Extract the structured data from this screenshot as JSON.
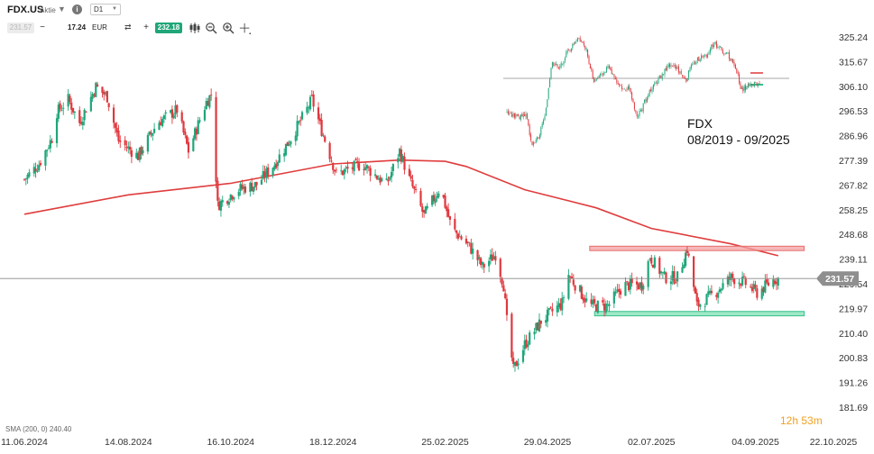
{
  "toolbar": {
    "symbol": "FDX.US",
    "symbol_type": "Aktie",
    "timeframe": "D1",
    "sell_price": "231.57",
    "quantity": "17.24",
    "quantity_unit": "EUR",
    "buy_price": "232.18",
    "icons": [
      "info-icon",
      "chevron-down-icon",
      "swap-icon",
      "candle-type-icon",
      "zoom-out-icon",
      "zoom-in-icon",
      "crosshair-icon"
    ]
  },
  "inset": {
    "title_line1": "FDX",
    "title_line2": "08/2019 - 09/2025"
  },
  "sma_legend": "SMA (200, 0) 240.40",
  "timer": "12h 53m",
  "colors": {
    "up": "#1fa67a",
    "down": "#e0383e",
    "sma": "#e03c3c",
    "resistance": "#e66b6b",
    "support": "#34c08a",
    "price_line": "#888888"
  },
  "chart_data": {
    "type": "candlestick",
    "title": "",
    "xlabel": "",
    "ylabel": "",
    "ylim": [
      181.69,
      330.0
    ],
    "y_ticks": [
      325.24,
      315.67,
      306.1,
      296.53,
      286.96,
      277.39,
      267.82,
      258.25,
      248.68,
      239.11,
      229.54,
      219.97,
      210.4,
      200.83,
      191.26,
      181.69
    ],
    "x_ticks": [
      "11.06.2024",
      "14.08.2024",
      "16.10.2024",
      "18.12.2024",
      "25.02.2025",
      "29.04.2025",
      "02.07.2025",
      "04.09.2025",
      "22.10.2025"
    ],
    "last_price": 231.57,
    "anchors": [
      {
        "d": "2024-06-11",
        "p": 270
      },
      {
        "d": "2024-06-20",
        "p": 276
      },
      {
        "d": "2024-06-28",
        "p": 286
      },
      {
        "d": "2024-07-01",
        "p": 296
      },
      {
        "d": "2024-07-08",
        "p": 301
      },
      {
        "d": "2024-07-15",
        "p": 292
      },
      {
        "d": "2024-07-25",
        "p": 306
      },
      {
        "d": "2024-08-01",
        "p": 302
      },
      {
        "d": "2024-08-08",
        "p": 285
      },
      {
        "d": "2024-08-20",
        "p": 279
      },
      {
        "d": "2024-09-01",
        "p": 292
      },
      {
        "d": "2024-09-13",
        "p": 297
      },
      {
        "d": "2024-09-20",
        "p": 281
      },
      {
        "d": "2024-10-01",
        "p": 300
      },
      {
        "d": "2024-10-04",
        "p": 303
      },
      {
        "d": "2024-10-08",
        "p": 260
      },
      {
        "d": "2024-10-20",
        "p": 266
      },
      {
        "d": "2024-11-01",
        "p": 268
      },
      {
        "d": "2024-11-12",
        "p": 276
      },
      {
        "d": "2024-11-22",
        "p": 286
      },
      {
        "d": "2024-12-01",
        "p": 296
      },
      {
        "d": "2024-12-05",
        "p": 301
      },
      {
        "d": "2024-12-10",
        "p": 291
      },
      {
        "d": "2024-12-20",
        "p": 272
      },
      {
        "d": "2025-01-05",
        "p": 276
      },
      {
        "d": "2025-01-20",
        "p": 268
      },
      {
        "d": "2025-01-28",
        "p": 281
      },
      {
        "d": "2025-02-03",
        "p": 270
      },
      {
        "d": "2025-02-12",
        "p": 256
      },
      {
        "d": "2025-02-22",
        "p": 267
      },
      {
        "d": "2025-03-01",
        "p": 251
      },
      {
        "d": "2025-03-12",
        "p": 244
      },
      {
        "d": "2025-03-20",
        "p": 236
      },
      {
        "d": "2025-03-28",
        "p": 241
      },
      {
        "d": "2025-04-02",
        "p": 229
      },
      {
        "d": "2025-04-04",
        "p": 215
      },
      {
        "d": "2025-04-08",
        "p": 196
      },
      {
        "d": "2025-04-15",
        "p": 206
      },
      {
        "d": "2025-04-25",
        "p": 215
      },
      {
        "d": "2025-05-08",
        "p": 222
      },
      {
        "d": "2025-05-12",
        "p": 233
      },
      {
        "d": "2025-05-25",
        "p": 221
      },
      {
        "d": "2025-06-05",
        "p": 221
      },
      {
        "d": "2025-06-15",
        "p": 229
      },
      {
        "d": "2025-06-26",
        "p": 229
      },
      {
        "d": "2025-07-01",
        "p": 240
      },
      {
        "d": "2025-07-10",
        "p": 232
      },
      {
        "d": "2025-07-18",
        "p": 232
      },
      {
        "d": "2025-07-24",
        "p": 243
      },
      {
        "d": "2025-07-30",
        "p": 221
      },
      {
        "d": "2025-08-10",
        "p": 226
      },
      {
        "d": "2025-08-20",
        "p": 232
      },
      {
        "d": "2025-08-28",
        "p": 230
      },
      {
        "d": "2025-09-05",
        "p": 226
      },
      {
        "d": "2025-09-15",
        "p": 231
      },
      {
        "d": "2025-09-18",
        "p": 231.6
      }
    ],
    "sma200": {
      "name": "SMA (200, 0)",
      "last": 240.4,
      "points": [
        {
          "d": "2024-06-11",
          "p": 256.5
        },
        {
          "d": "2024-08-14",
          "p": 264
        },
        {
          "d": "2024-10-16",
          "p": 268.5
        },
        {
          "d": "2024-12-18",
          "p": 276
        },
        {
          "d": "2025-01-28",
          "p": 277.5
        },
        {
          "d": "2025-02-25",
          "p": 277
        },
        {
          "d": "2025-03-10",
          "p": 275
        },
        {
          "d": "2025-04-15",
          "p": 266
        },
        {
          "d": "2025-05-29",
          "p": 259
        },
        {
          "d": "2025-07-02",
          "p": 251
        },
        {
          "d": "2025-08-20",
          "p": 245
        },
        {
          "d": "2025-09-18",
          "p": 240.4
        }
      ]
    },
    "resistance_zone": {
      "from": "2025-05-25",
      "to": "2025-10-04",
      "low": 242.4,
      "high": 244.1
    },
    "support_zone": {
      "from": "2025-05-28",
      "to": "2025-10-04",
      "low": 217.1,
      "high": 218.8
    }
  }
}
